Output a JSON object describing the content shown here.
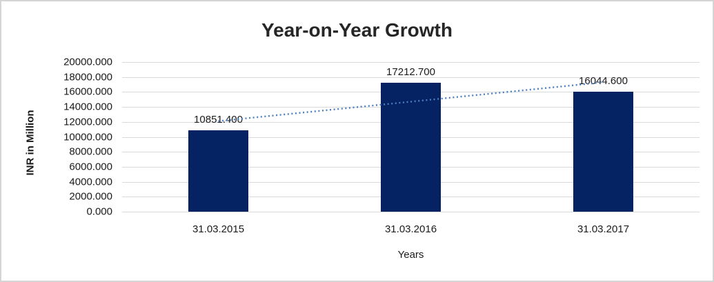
{
  "chart_data": {
    "type": "bar",
    "title": "Year-on-Year Growth",
    "xlabel": "Years",
    "ylabel": "INR in Million",
    "categories": [
      "31.03.2015",
      "31.03.2016",
      "31.03.2017"
    ],
    "values": [
      10851.4,
      17212.7,
      16044.6
    ],
    "data_labels": [
      "10851.400",
      "17212.700",
      "16044.600"
    ],
    "ylim": [
      0,
      20000
    ],
    "ytick_step": 2000,
    "yticks": [
      {
        "v": 0,
        "label": "0.000"
      },
      {
        "v": 2000,
        "label": "2000.000"
      },
      {
        "v": 4000,
        "label": "4000.000"
      },
      {
        "v": 6000,
        "label": "6000.000"
      },
      {
        "v": 8000,
        "label": "8000.000"
      },
      {
        "v": 10000,
        "label": "10000.000"
      },
      {
        "v": 12000,
        "label": "12000.000"
      },
      {
        "v": 14000,
        "label": "14000.000"
      },
      {
        "v": 16000,
        "label": "16000.000"
      },
      {
        "v": 18000,
        "label": "18000.000"
      },
      {
        "v": 20000,
        "label": "20000.000"
      }
    ],
    "grid": true,
    "legend": "none",
    "trendline": {
      "type": "linear",
      "style": "dotted"
    },
    "colors": {
      "bar": "#052263",
      "trendline": "#4A7FC1",
      "gridline": "#D9D9D9",
      "text": "#1A1A1A",
      "background": "#FFFFFF",
      "frame_border": "#D5D5D5"
    }
  }
}
